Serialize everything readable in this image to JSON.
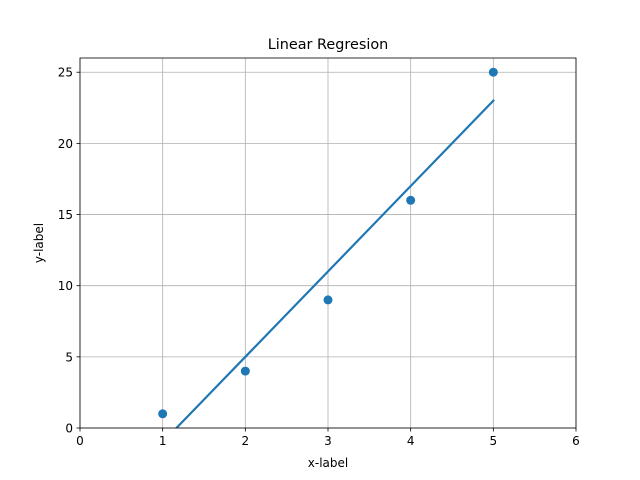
{
  "chart_data": {
    "type": "scatter",
    "title": "Linear Regresion",
    "xlabel": "x-label",
    "ylabel": "y-label",
    "xlim": [
      0,
      6
    ],
    "ylim": [
      0,
      26
    ],
    "xticks": [
      0,
      1,
      2,
      3,
      4,
      5,
      6
    ],
    "yticks": [
      0,
      5,
      10,
      15,
      20,
      25
    ],
    "grid": true,
    "color": "#1f77b4",
    "series": [
      {
        "type": "scatter",
        "x": [
          1,
          2,
          3,
          4,
          5
        ],
        "y": [
          1,
          4,
          9,
          16,
          25
        ]
      },
      {
        "type": "line",
        "x": [
          1,
          5
        ],
        "y": [
          -1,
          23
        ]
      }
    ]
  }
}
